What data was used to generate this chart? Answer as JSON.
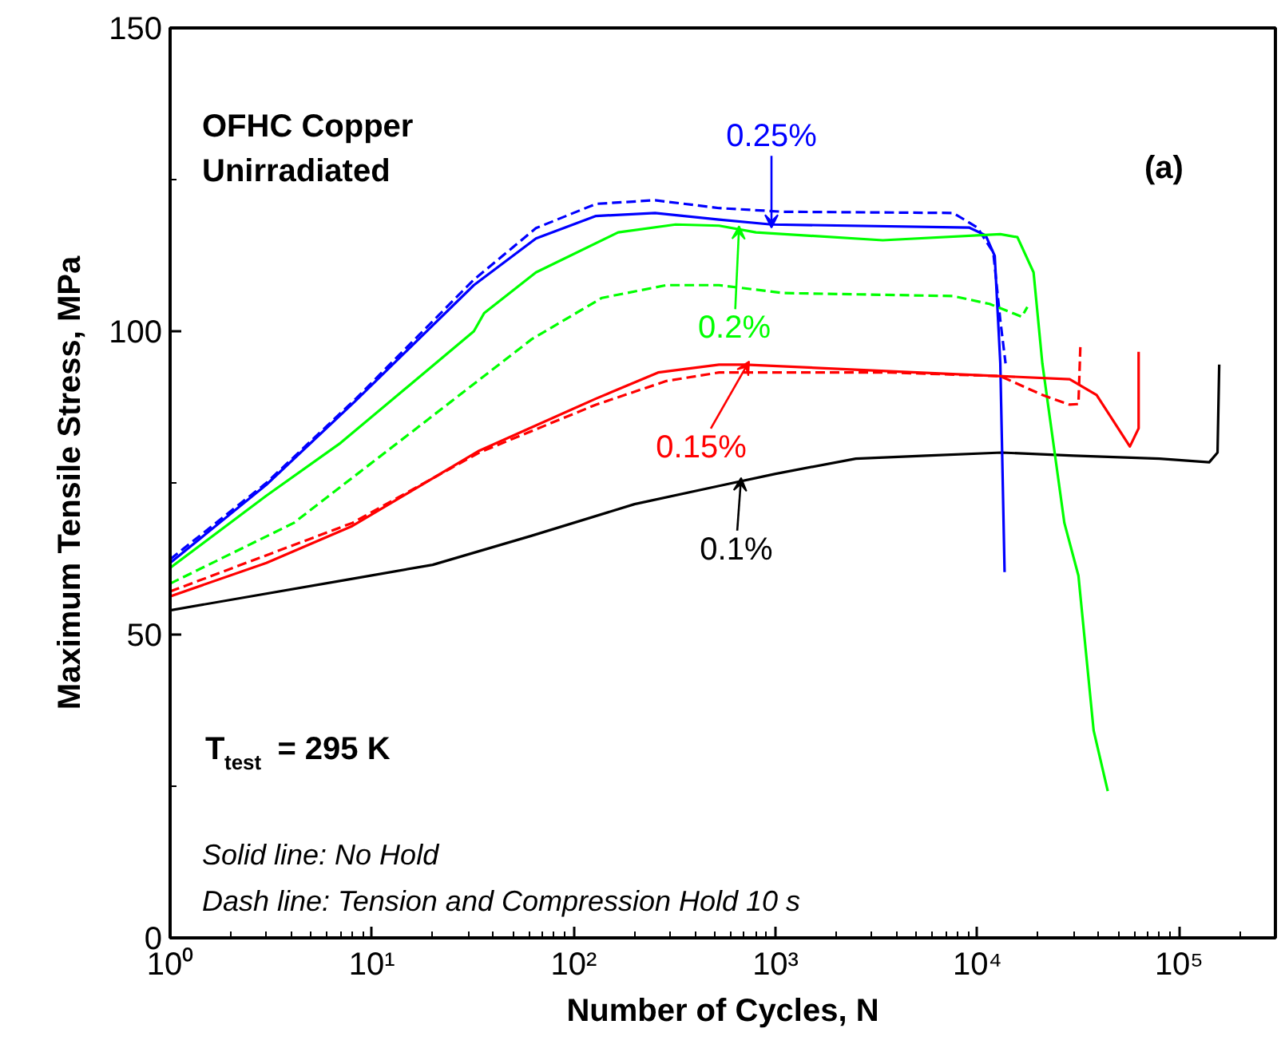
{
  "chart_data": {
    "type": "line",
    "xlabel": "Number of Cycles, N",
    "ylabel": "Maximum Tensile Stress, MPa",
    "log": "x",
    "grid": false,
    "xlim": [
      1,
      300000
    ],
    "ylim": [
      0,
      150
    ],
    "xticks": [
      {
        "value": 1,
        "label": "10⁰"
      },
      {
        "value": 2,
        "label": null
      },
      {
        "value": 3,
        "label": null
      },
      {
        "value": 4,
        "label": null
      },
      {
        "value": 5,
        "label": null
      },
      {
        "value": 6,
        "label": null
      },
      {
        "value": 7,
        "label": null
      },
      {
        "value": 8,
        "label": null
      },
      {
        "value": 9,
        "label": null
      },
      {
        "value": 10,
        "label": "10¹"
      },
      {
        "value": 20,
        "label": null
      },
      {
        "value": 30,
        "label": null
      },
      {
        "value": 40,
        "label": null
      },
      {
        "value": 50,
        "label": null
      },
      {
        "value": 60,
        "label": null
      },
      {
        "value": 70,
        "label": null
      },
      {
        "value": 80,
        "label": null
      },
      {
        "value": 90,
        "label": null
      },
      {
        "value": 100,
        "label": "10²"
      },
      {
        "value": 200,
        "label": null
      },
      {
        "value": 300,
        "label": null
      },
      {
        "value": 400,
        "label": null
      },
      {
        "value": 500,
        "label": null
      },
      {
        "value": 600,
        "label": null
      },
      {
        "value": 700,
        "label": null
      },
      {
        "value": 800,
        "label": null
      },
      {
        "value": 900,
        "label": null
      },
      {
        "value": 1000,
        "label": "10³"
      },
      {
        "value": 2000,
        "label": null
      },
      {
        "value": 3000,
        "label": null
      },
      {
        "value": 4000,
        "label": null
      },
      {
        "value": 5000,
        "label": null
      },
      {
        "value": 6000,
        "label": null
      },
      {
        "value": 7000,
        "label": null
      },
      {
        "value": 8000,
        "label": null
      },
      {
        "value": 9000,
        "label": null
      },
      {
        "value": 10000,
        "label": "10⁴"
      },
      {
        "value": 20000,
        "label": null
      },
      {
        "value": 30000,
        "label": null
      },
      {
        "value": 40000,
        "label": null
      },
      {
        "value": 50000,
        "label": null
      },
      {
        "value": 60000,
        "label": null
      },
      {
        "value": 70000,
        "label": null
      },
      {
        "value": 80000,
        "label": null
      },
      {
        "value": 90000,
        "label": null
      },
      {
        "value": 100000,
        "label": "10⁵"
      },
      {
        "value": 200000,
        "label": null
      }
    ],
    "yticks": [
      0,
      {
        "value": 25,
        "label": null
      },
      50,
      {
        "value": 75,
        "label": null
      },
      100,
      {
        "value": 125,
        "label": null
      },
      150
    ],
    "series": [
      {
        "color": "#000000",
        "line_style": "solid",
        "x": [
          1,
          8,
          20,
          62,
          200,
          525,
          1000,
          2500,
          5580,
          13200,
          30000,
          80000,
          141000,
          155000,
          158000
        ],
        "values": [
          54,
          59.2,
          61.5,
          66.3,
          71.5,
          74.5,
          76.5,
          79,
          79.5,
          80,
          79.5,
          79,
          78.4,
          80,
          94.5
        ]
      },
      {
        "color": "#0000ff",
        "line_style": "solid",
        "x": [
          1,
          3,
          8.4,
          32,
          65,
          129,
          253,
          525,
          955,
          9100,
          11000,
          12200,
          13000,
          13650
        ],
        "values": [
          61.8,
          74.7,
          88.7,
          107.6,
          115.3,
          119,
          119.5,
          118.4,
          117.6,
          117.1,
          115.8,
          112.4,
          94.7,
          60.3
        ]
      },
      {
        "color": "#0000ff",
        "line_style": "dashed",
        "x": [
          1,
          3,
          8.4,
          32,
          65,
          129,
          253,
          525,
          1090,
          7600,
          10000,
          12000,
          13000,
          13800
        ],
        "values": [
          62.4,
          75,
          89,
          108.5,
          117,
          121,
          121.6,
          120.3,
          119.7,
          119.5,
          117.1,
          113,
          101.8,
          94.7
        ]
      },
      {
        "color": "#00ff00",
        "line_style": "solid",
        "x": [
          1,
          3,
          7,
          32,
          36,
          65,
          166,
          320,
          525,
          800,
          3400,
          13000,
          15800,
          19000,
          21000,
          27000,
          31700,
          37700,
          44300
        ],
        "values": [
          61,
          72.9,
          81.6,
          100,
          103,
          109.7,
          116.3,
          117.6,
          117.4,
          116.3,
          115,
          116,
          115.5,
          109.7,
          94.7,
          68.4,
          59.7,
          34.2,
          24.2
        ]
      },
      {
        "color": "#00ff00",
        "line_style": "dashed",
        "x": [
          1,
          4.1,
          18.7,
          62,
          138,
          288,
          525,
          1090,
          7600,
          11500,
          16600,
          17700
        ],
        "values": [
          58.4,
          68.4,
          85.3,
          98.7,
          105.5,
          107.6,
          107.6,
          106.3,
          105.8,
          104.5,
          102.4,
          104
        ]
      },
      {
        "color": "#ff0000",
        "line_style": "solid",
        "x": [
          1,
          3,
          8,
          34,
          129,
          262,
          525,
          710,
          3700,
          28700,
          39000,
          57000,
          63000,
          63000
        ],
        "values": [
          56.3,
          61.8,
          67.9,
          80.3,
          88.9,
          93.2,
          94.5,
          94.5,
          93.4,
          92.1,
          89.5,
          81,
          84,
          96.6
        ]
      },
      {
        "color": "#ff0000",
        "line_style": "dashed",
        "x": [
          1,
          8,
          34,
          129,
          288,
          525,
          3700,
          13000,
          21000,
          28700,
          31700,
          32400
        ],
        "values": [
          57.1,
          68.4,
          80,
          87.9,
          91.8,
          93.2,
          93.2,
          92.6,
          89.5,
          87.9,
          88,
          97.4
        ]
      }
    ],
    "annotations": [
      {
        "text": "0.25%",
        "x": 955,
        "y": 117.6
      },
      {
        "text": "0.2%",
        "x": 660,
        "y": 116.8
      },
      {
        "text": "0.15%",
        "x": 740,
        "y": 94.5
      },
      {
        "text": "0.1%",
        "x": 675,
        "y": 75.3
      },
      "OFHC Copper",
      "Unirradiated",
      "(a)",
      "T$_{test}$ = 295 K",
      "Solid line: No Hold",
      "Dash line: Tension and Compression Hold 10 s"
    ]
  }
}
